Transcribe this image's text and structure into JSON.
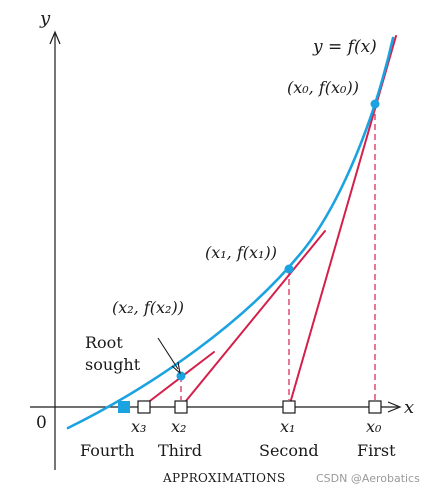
{
  "axes": {
    "x_label": "x",
    "y_label": "y",
    "origin": "0"
  },
  "curve_label": "y = f(x)",
  "points": {
    "p0": "(x₀, f(x₀))",
    "p1": "(x₁, f(x₁))",
    "p2": "(x₂, f(x₂))"
  },
  "root_label": {
    "line1": "Root",
    "line2": "sought"
  },
  "ticks": {
    "x3": "x₃",
    "x2": "x₂",
    "x1": "x₁",
    "x0": "x₀"
  },
  "approximations": {
    "fourth": "Fourth",
    "third": "Third",
    "second": "Second",
    "first": "First"
  },
  "caption": "APPROXIMATIONS",
  "watermark": "CSDN @Aerobatics",
  "colors": {
    "curve": "#1aa3e0",
    "tangent": "#d4204a",
    "axis": "#1a1a1a"
  }
}
